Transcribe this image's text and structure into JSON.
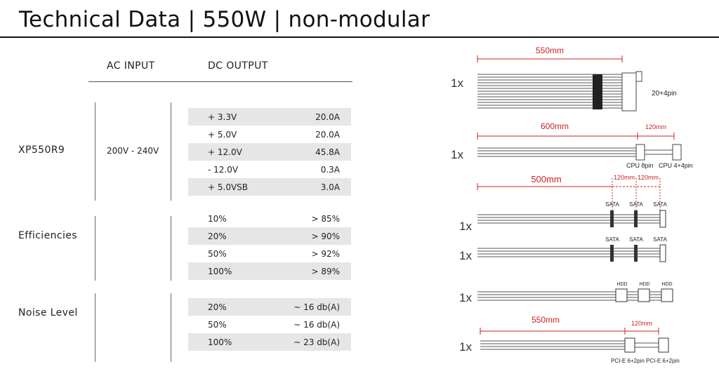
{
  "title": "Technical Data | 550W | non-modular",
  "headers": {
    "ac_input": "AC INPUT",
    "dc_output": "DC OUTPUT"
  },
  "model": "XP550R9",
  "ac_value": "200V - 240V",
  "dc_output": [
    {
      "label": "+ 3.3V",
      "value": "20.0A"
    },
    {
      "label": "+ 5.0V",
      "value": "20.0A"
    },
    {
      "label": "+ 12.0V",
      "value": "45.8A"
    },
    {
      "label": "- 12.0V",
      "value": "0.3A"
    },
    {
      "label": "+ 5.0VSB",
      "value": "3.0A"
    }
  ],
  "efficiencies_label": "Efficiencies",
  "efficiencies": [
    {
      "load": "10%",
      "value": "> 85%"
    },
    {
      "load": "20%",
      "value": "> 90%"
    },
    {
      "load": "50%",
      "value": "> 92%"
    },
    {
      "load": "100%",
      "value": "> 89%"
    }
  ],
  "noise_label": "Noise Level",
  "noise": [
    {
      "load": "20%",
      "value": "~ 16 db(A)"
    },
    {
      "load": "50%",
      "value": "~ 16 db(A)"
    },
    {
      "load": "100%",
      "value": "~ 23 db(A)"
    }
  ],
  "cables": {
    "count_label": "1x",
    "atx": {
      "length": "550mm",
      "connector": "20+4pin"
    },
    "cpu": {
      "length": "600mm",
      "ext": "120mm",
      "conn1": "CPU 8pin",
      "conn2": "CPU 4+4pin"
    },
    "sata1": {
      "length": "500mm",
      "ext1": "120mm",
      "ext2": "120mm",
      "conns": [
        "SATA",
        "SATA",
        "SATA"
      ]
    },
    "sata2": {
      "conns": [
        "SATA",
        "SATA",
        "SATA"
      ]
    },
    "hdd": {
      "conns": [
        "HDD",
        "HDD",
        "HDD"
      ]
    },
    "pcie": {
      "length": "550mm",
      "ext": "120mm",
      "conn1": "PCI-E 6+2pin",
      "conn2": "PCI-E 6+2pin"
    }
  },
  "colors": {
    "dimension_red": "#cc2222",
    "row_shade": "#e6e6e6"
  }
}
